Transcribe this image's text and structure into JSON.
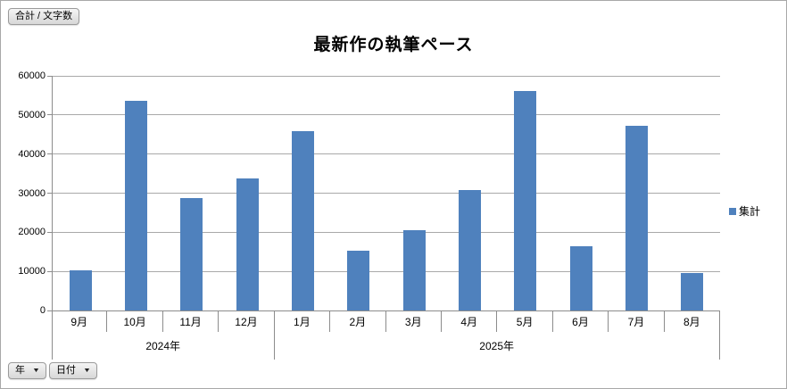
{
  "pivot_buttons": {
    "value_field": "合計 / 文字数",
    "axis_fields": [
      {
        "label": "年"
      },
      {
        "label": "日付"
      }
    ],
    "dropdown_icon": "▼"
  },
  "chart_data": {
    "type": "bar",
    "title": "最新作の執筆ペース",
    "categories": [
      "9月",
      "10月",
      "11月",
      "12月",
      "1月",
      "2月",
      "3月",
      "4月",
      "5月",
      "6月",
      "7月",
      "8月"
    ],
    "category_groups": [
      {
        "label": "2024年",
        "span": 4
      },
      {
        "label": "2025年",
        "span": 8
      }
    ],
    "series": [
      {
        "name": "集計",
        "color": "#4F81BD",
        "values": [
          10300,
          53500,
          28700,
          33700,
          45900,
          15300,
          20600,
          30800,
          56100,
          16500,
          47200,
          9500
        ]
      }
    ],
    "ylim": [
      0,
      60000
    ],
    "yticks": [
      0,
      10000,
      20000,
      30000,
      40000,
      50000,
      60000
    ],
    "grid": true,
    "legend_position": "right",
    "legend": {
      "label": "集計",
      "color": "#4F81BD"
    }
  }
}
